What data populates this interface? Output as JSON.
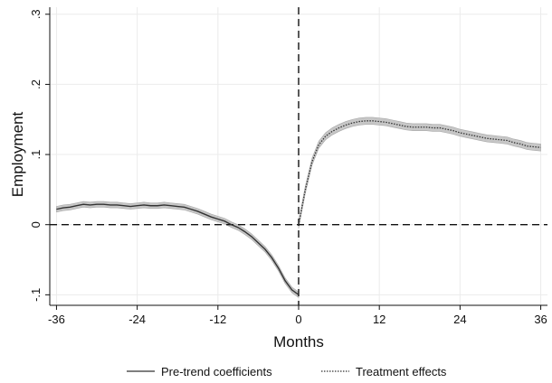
{
  "chart_data": {
    "type": "line",
    "xlabel": "Months",
    "ylabel": "Employment",
    "xlim": [
      -37,
      37
    ],
    "ylim": [
      -0.115,
      0.31
    ],
    "xticks": [
      -36,
      -24,
      -12,
      0,
      12,
      24,
      36
    ],
    "xtick_labels": [
      "-36",
      "-24",
      "-12",
      "0",
      "12",
      "24",
      "36"
    ],
    "yticks": [
      -0.1,
      0,
      0.1,
      0.2,
      0.3
    ],
    "ytick_labels": [
      "-.1",
      "0",
      ".1",
      ".2",
      ".3"
    ],
    "grid": true,
    "reference_lines": {
      "x": 0,
      "y": 0,
      "style": "dashed"
    },
    "legend_position": "bottom",
    "band_color": "#bdbdbd",
    "line_color": "#333333",
    "series": [
      {
        "name": "Pre-trend coefficients",
        "style": "solid",
        "x": [
          -36,
          -35,
          -34,
          -33,
          -32,
          -31,
          -30,
          -29,
          -28,
          -27,
          -26,
          -25,
          -24,
          -23,
          -22,
          -21,
          -20,
          -19,
          -18,
          -17,
          -16,
          -15,
          -14,
          -13,
          -12,
          -11,
          -10,
          -9,
          -8,
          -7,
          -6,
          -5,
          -4,
          -3,
          -2,
          -1,
          0
        ],
        "y": [
          0.022,
          0.024,
          0.025,
          0.027,
          0.029,
          0.028,
          0.029,
          0.029,
          0.028,
          0.028,
          0.027,
          0.026,
          0.027,
          0.028,
          0.027,
          0.027,
          0.028,
          0.027,
          0.026,
          0.025,
          0.022,
          0.019,
          0.015,
          0.011,
          0.008,
          0.005,
          0.0,
          -0.004,
          -0.01,
          -0.017,
          -0.026,
          -0.035,
          -0.047,
          -0.062,
          -0.08,
          -0.093,
          -0.1
        ],
        "band": 0.004
      },
      {
        "name": "Treatment effects",
        "style": "dotted",
        "x": [
          0,
          1,
          2,
          3,
          4,
          5,
          6,
          7,
          8,
          9,
          10,
          11,
          12,
          13,
          14,
          15,
          16,
          17,
          18,
          19,
          20,
          21,
          22,
          23,
          24,
          25,
          26,
          27,
          28,
          29,
          30,
          31,
          32,
          33,
          34,
          35,
          36
        ],
        "y": [
          0.0,
          0.05,
          0.09,
          0.114,
          0.126,
          0.133,
          0.138,
          0.142,
          0.145,
          0.147,
          0.148,
          0.148,
          0.147,
          0.146,
          0.144,
          0.142,
          0.14,
          0.139,
          0.139,
          0.139,
          0.138,
          0.138,
          0.136,
          0.134,
          0.131,
          0.129,
          0.127,
          0.125,
          0.123,
          0.122,
          0.121,
          0.12,
          0.117,
          0.115,
          0.112,
          0.111,
          0.11
        ],
        "band": 0.005
      }
    ]
  }
}
